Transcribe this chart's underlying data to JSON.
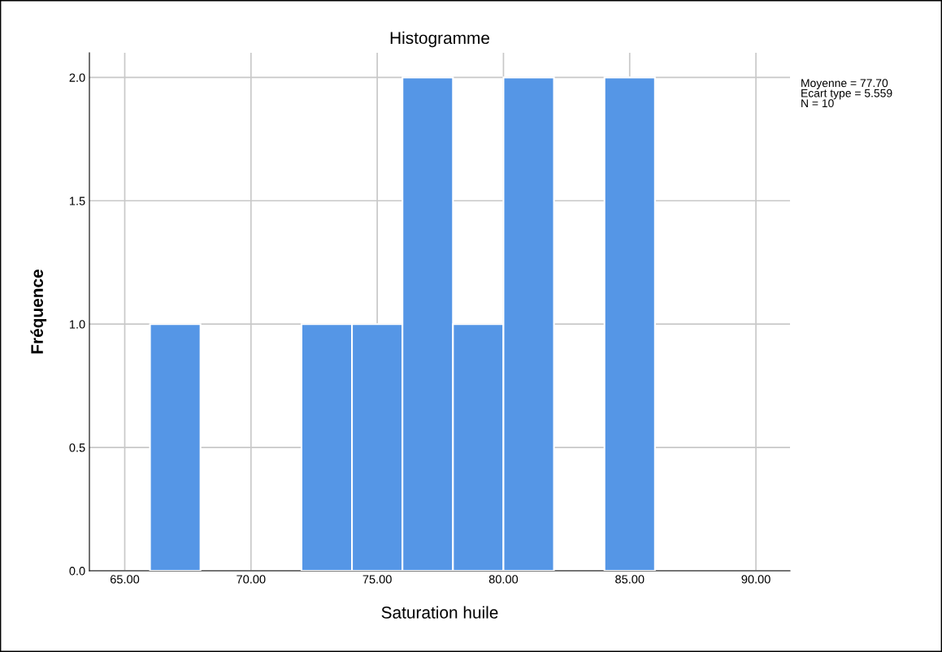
{
  "chart_data": {
    "type": "histogram",
    "title": "Histogramme",
    "xlabel": "Saturation huile",
    "ylabel": "Fréquence",
    "bins": [
      66,
      68,
      70,
      72,
      74,
      76,
      78,
      80,
      82,
      84,
      86
    ],
    "values": [
      1,
      0,
      0,
      1,
      1,
      2,
      1,
      2,
      0,
      2
    ],
    "color": "#5596e6",
    "xlim": [
      63.6,
      91.35
    ],
    "ylim": [
      0,
      2.1
    ],
    "xticks": [
      {
        "value": 65,
        "label": "65.00"
      },
      {
        "value": 70,
        "label": "70.00"
      },
      {
        "value": 75,
        "label": "75.00"
      },
      {
        "value": 80,
        "label": "80.00"
      },
      {
        "value": 85,
        "label": "85.00"
      },
      {
        "value": 90,
        "label": "90.00"
      }
    ],
    "yticks": [
      {
        "value": 0,
        "label": "0.0"
      },
      {
        "value": 0.5,
        "label": "0.5"
      },
      {
        "value": 1,
        "label": "1.0"
      },
      {
        "value": 1.5,
        "label": "1.5"
      },
      {
        "value": 2,
        "label": "2.0"
      }
    ],
    "grid": true,
    "annotations": [
      "Moyenne = 77.70\nEcart type = 5.559\nN = 10"
    ]
  }
}
